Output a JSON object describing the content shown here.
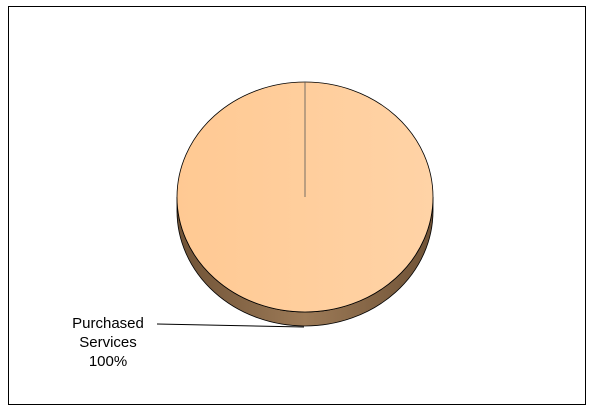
{
  "chart_data": {
    "type": "pie",
    "title": "",
    "categories": [
      "Purchased Services"
    ],
    "values": [
      100
    ],
    "labels": [
      {
        "category": "Purchased Services",
        "percent": "100%"
      }
    ],
    "legend": "none",
    "style": "3d",
    "colors": {
      "face": "#FFCC99",
      "face_edge": "#FFDDB3",
      "side": "#8B6A4A",
      "outline": "#000000"
    }
  }
}
